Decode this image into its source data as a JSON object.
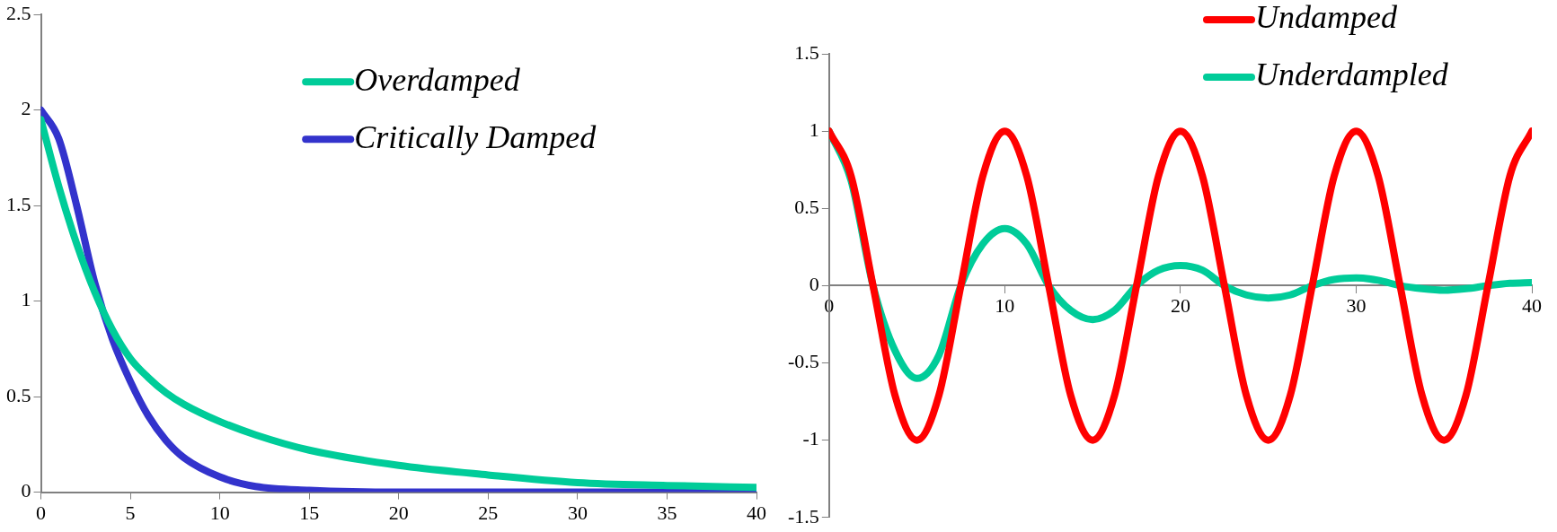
{
  "chart_data": [
    {
      "type": "line",
      "x": [
        0,
        1,
        2,
        3,
        4,
        5,
        6,
        7,
        8,
        10,
        12,
        15,
        20,
        25,
        30,
        35,
        40
      ],
      "xlim": [
        0,
        40
      ],
      "xticks": [
        0,
        5,
        10,
        15,
        20,
        25,
        30,
        35,
        40
      ],
      "ylim": [
        0,
        2.5
      ],
      "yticks": [
        0,
        0.5,
        1,
        1.5,
        2,
        2.5
      ],
      "grid": false,
      "legend": "top",
      "marker": "none",
      "series": [
        {
          "name": "Overdamped",
          "color": "#00cc99",
          "values": [
            1.95,
            1.6,
            1.3,
            1.05,
            0.85,
            0.7,
            0.6,
            0.52,
            0.46,
            0.37,
            0.3,
            0.22,
            0.14,
            0.09,
            0.05,
            0.035,
            0.025
          ]
        },
        {
          "name": "Critically Damped",
          "color": "#3333cc",
          "values": [
            2.0,
            1.85,
            1.5,
            1.1,
            0.8,
            0.58,
            0.4,
            0.27,
            0.18,
            0.08,
            0.03,
            0.01,
            0,
            0,
            0,
            0,
            0
          ]
        }
      ]
    },
    {
      "type": "line",
      "x": [
        0,
        1.25,
        2.5,
        3.75,
        5,
        6.25,
        7.5,
        8.75,
        10,
        11.25,
        12.5,
        13.75,
        15,
        16.25,
        17.5,
        18.75,
        20,
        21.25,
        22.5,
        23.75,
        25,
        26.25,
        27.5,
        28.75,
        30,
        31.25,
        32.5,
        33.75,
        35,
        36.25,
        37.5,
        38.75,
        40
      ],
      "xlim": [
        0,
        40
      ],
      "xticks": [
        0,
        10,
        20,
        30,
        40
      ],
      "ylim": [
        -1.5,
        1.5
      ],
      "yticks": [
        -1.5,
        -1,
        -0.5,
        0,
        0.5,
        1,
        1.5
      ],
      "grid": false,
      "legend": "top right",
      "marker": "none",
      "series": [
        {
          "name": "Undamped",
          "color": "#ff0000",
          "values": [
            1,
            0.71,
            0,
            -0.71,
            -1,
            -0.71,
            0,
            0.71,
            1,
            0.71,
            0,
            -0.71,
            -1,
            -0.71,
            0,
            0.71,
            1,
            0.71,
            0,
            -0.71,
            -1,
            -0.71,
            0,
            0.71,
            1,
            0.71,
            0,
            -0.71,
            -1,
            -0.71,
            0,
            0.71,
            1
          ]
        },
        {
          "name": "Underdampled",
          "color": "#00cc99",
          "values": [
            1,
            0.68,
            0,
            -0.42,
            -0.6,
            -0.45,
            0,
            0.27,
            0.37,
            0.27,
            0,
            -0.16,
            -0.22,
            -0.16,
            0,
            0.1,
            0.13,
            0.1,
            0,
            -0.06,
            -0.08,
            -0.06,
            0,
            0.04,
            0.05,
            0.035,
            0,
            -0.02,
            -0.03,
            -0.02,
            0,
            0.015,
            0.02
          ]
        }
      ]
    }
  ]
}
